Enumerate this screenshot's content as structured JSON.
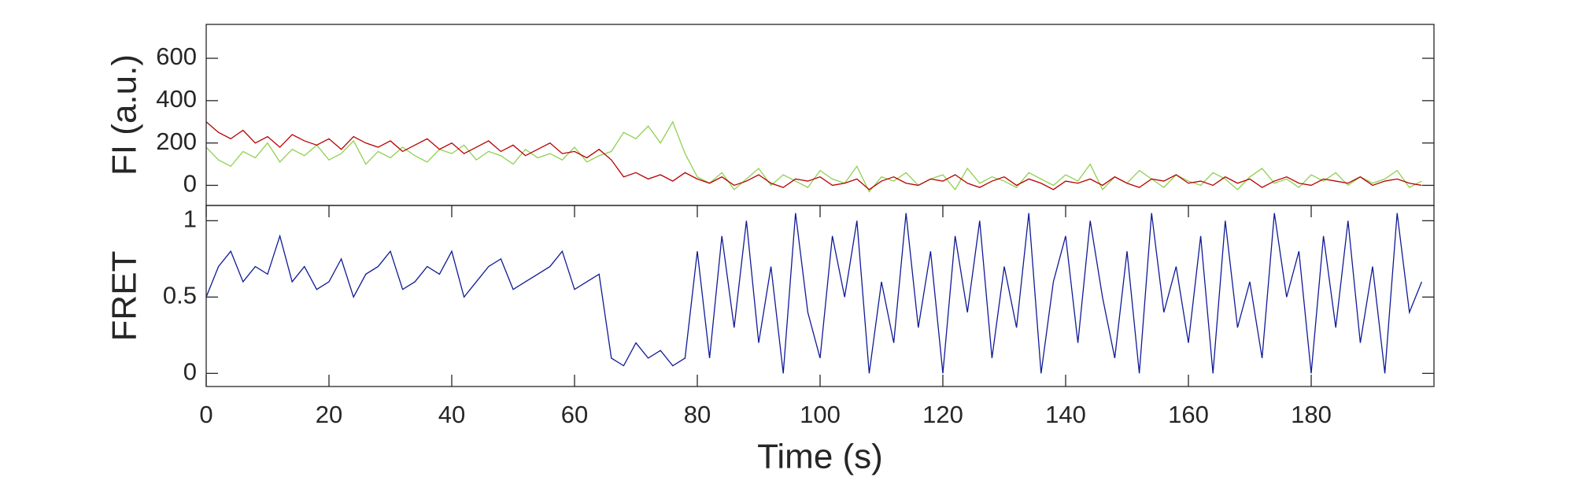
{
  "chart_data": [
    {
      "type": "line",
      "ylabel": "FI (a.u.)",
      "x": [
        0,
        2,
        4,
        6,
        8,
        10,
        12,
        14,
        16,
        18,
        20,
        22,
        24,
        26,
        28,
        30,
        32,
        34,
        36,
        38,
        40,
        42,
        44,
        46,
        48,
        50,
        52,
        54,
        56,
        58,
        60,
        62,
        64,
        66,
        68,
        70,
        72,
        74,
        76,
        78,
        80,
        82,
        84,
        86,
        88,
        90,
        92,
        94,
        96,
        98,
        100,
        102,
        104,
        106,
        108,
        110,
        112,
        114,
        116,
        118,
        120,
        122,
        124,
        126,
        128,
        130,
        132,
        134,
        136,
        138,
        140,
        142,
        144,
        146,
        148,
        150,
        152,
        154,
        156,
        158,
        160,
        162,
        164,
        166,
        168,
        170,
        172,
        174,
        176,
        178,
        180,
        182,
        184,
        186,
        188,
        190,
        192,
        194,
        196,
        198
      ],
      "series": [
        {
          "color": "#8fd14f",
          "values": [
            180,
            120,
            90,
            160,
            130,
            200,
            110,
            170,
            140,
            190,
            120,
            150,
            210,
            100,
            160,
            130,
            180,
            140,
            110,
            170,
            150,
            190,
            120,
            160,
            140,
            100,
            170,
            130,
            150,
            120,
            180,
            110,
            140,
            160,
            250,
            220,
            280,
            200,
            300,
            150,
            40,
            10,
            60,
            -20,
            30,
            80,
            0,
            50,
            20,
            -10,
            70,
            30,
            10,
            90,
            -30,
            40,
            20,
            60,
            0,
            30,
            50,
            -20,
            80,
            10,
            40,
            20,
            -10,
            60,
            30,
            0,
            50,
            20,
            100,
            -20,
            40,
            10,
            70,
            30,
            -10,
            50,
            20,
            0,
            60,
            30,
            -20,
            40,
            80,
            10,
            30,
            -10,
            50,
            20,
            60,
            0,
            40,
            10,
            30,
            70,
            -10,
            20
          ]
        },
        {
          "color": "#b80000",
          "values": [
            300,
            250,
            220,
            260,
            200,
            230,
            180,
            240,
            210,
            190,
            220,
            170,
            230,
            200,
            180,
            210,
            160,
            190,
            220,
            170,
            200,
            150,
            180,
            210,
            160,
            190,
            140,
            170,
            200,
            150,
            160,
            130,
            170,
            120,
            40,
            60,
            30,
            50,
            20,
            60,
            30,
            10,
            40,
            0,
            20,
            50,
            10,
            -10,
            30,
            20,
            40,
            0,
            10,
            30,
            -20,
            20,
            40,
            10,
            0,
            30,
            20,
            50,
            10,
            -10,
            20,
            40,
            0,
            30,
            10,
            -20,
            20,
            10,
            30,
            0,
            40,
            10,
            -10,
            30,
            20,
            50,
            10,
            20,
            0,
            40,
            10,
            30,
            -10,
            20,
            40,
            10,
            0,
            30,
            20,
            10,
            40,
            0,
            20,
            30,
            10,
            0
          ]
        }
      ],
      "xlim": [
        0,
        200
      ],
      "ylim": [
        -95,
        760
      ],
      "yticks": [
        0,
        200,
        400,
        600
      ]
    },
    {
      "type": "line",
      "ylabel": "FRET",
      "xlabel": "Time (s)",
      "x": [
        0,
        2,
        4,
        6,
        8,
        10,
        12,
        14,
        16,
        18,
        20,
        22,
        24,
        26,
        28,
        30,
        32,
        34,
        36,
        38,
        40,
        42,
        44,
        46,
        48,
        50,
        52,
        54,
        56,
        58,
        60,
        62,
        64,
        66,
        68,
        70,
        72,
        74,
        76,
        78,
        80,
        82,
        84,
        86,
        88,
        90,
        92,
        94,
        96,
        98,
        100,
        102,
        104,
        106,
        108,
        110,
        112,
        114,
        116,
        118,
        120,
        122,
        124,
        126,
        128,
        130,
        132,
        134,
        136,
        138,
        140,
        142,
        144,
        146,
        148,
        150,
        152,
        154,
        156,
        158,
        160,
        162,
        164,
        166,
        168,
        170,
        172,
        174,
        176,
        178,
        180,
        182,
        184,
        186,
        188,
        190,
        192,
        194,
        196,
        198
      ],
      "series": [
        {
          "color": "#101a96",
          "values": [
            0.5,
            0.7,
            0.8,
            0.6,
            0.7,
            0.65,
            0.9,
            0.6,
            0.7,
            0.55,
            0.6,
            0.75,
            0.5,
            0.65,
            0.7,
            0.8,
            0.55,
            0.6,
            0.7,
            0.65,
            0.8,
            0.5,
            0.6,
            0.7,
            0.75,
            0.55,
            0.6,
            0.65,
            0.7,
            0.8,
            0.55,
            0.6,
            0.65,
            0.1,
            0.05,
            0.2,
            0.1,
            0.15,
            0.05,
            0.1,
            0.8,
            0.1,
            0.9,
            0.3,
            1.0,
            0.2,
            0.7,
            0.0,
            1.05,
            0.4,
            0.1,
            0.9,
            0.5,
            1.0,
            0.0,
            0.6,
            0.2,
            1.05,
            0.3,
            0.8,
            0.0,
            0.9,
            0.4,
            1.0,
            0.1,
            0.7,
            0.3,
            1.05,
            0.0,
            0.6,
            0.9,
            0.2,
            1.0,
            0.5,
            0.1,
            0.8,
            0.0,
            1.05,
            0.4,
            0.7,
            0.2,
            0.9,
            0.0,
            1.0,
            0.3,
            0.6,
            0.1,
            1.05,
            0.5,
            0.8,
            0.0,
            0.9,
            0.3,
            1.0,
            0.2,
            0.7,
            0.0,
            1.05,
            0.4,
            0.6
          ]
        }
      ],
      "xlim": [
        0,
        200
      ],
      "xticks": [
        0,
        20,
        40,
        60,
        80,
        100,
        120,
        140,
        160,
        180
      ],
      "ylim": [
        -0.086,
        1.1
      ],
      "yticks": [
        0,
        0.5,
        1
      ]
    }
  ]
}
